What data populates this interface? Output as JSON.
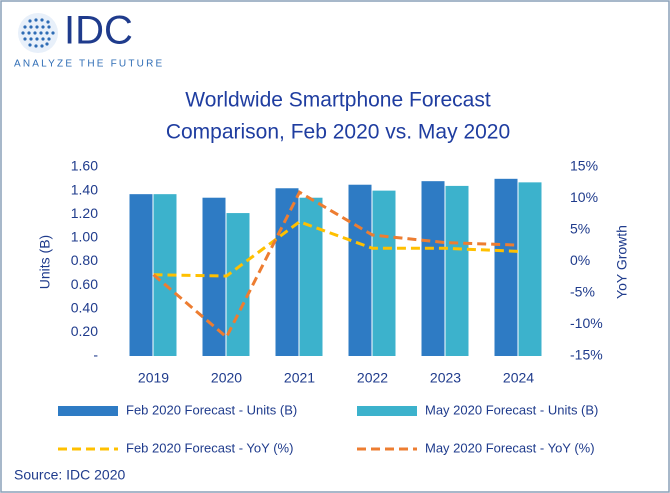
{
  "chart_data": {
    "type": "bar",
    "logo_text": "IDC",
    "tagline": "ANALYZE THE FUTURE",
    "title": [
      "Worldwide Smartphone Forecast",
      "Comparison, Feb 2020 vs. May 2020"
    ],
    "ylabel": "Units (B)",
    "y2label": "YoY Growth",
    "categories": [
      "2019",
      "2020",
      "2021",
      "2022",
      "2023",
      "2024"
    ],
    "series": [
      {
        "name": "Feb 2020 Forecast - Units (B)",
        "type": "bar",
        "color": "#2e7bc4",
        "values": [
          1.37,
          1.34,
          1.42,
          1.45,
          1.48,
          1.5
        ]
      },
      {
        "name": "May 2020 Forecast - Units (B)",
        "type": "bar",
        "color": "#3cb2cc",
        "values": [
          1.37,
          1.21,
          1.34,
          1.4,
          1.44,
          1.47
        ]
      },
      {
        "name": "Feb 2020 Forecast - YoY (%)",
        "type": "line",
        "axis": "y2",
        "color": "#ffc000",
        "values": [
          -2.1,
          -2.3,
          6.3,
          2.1,
          2.1,
          1.6
        ]
      },
      {
        "name": "May 2020 Forecast - YoY (%)",
        "type": "line",
        "axis": "y2",
        "color": "#ed7d31",
        "values": [
          -2.1,
          -12.0,
          11.0,
          4.2,
          3.0,
          2.6
        ]
      }
    ],
    "ylim": [
      0,
      1.6
    ],
    "yticks": [
      {
        "value": 0,
        "label": "-"
      },
      {
        "value": 0.2,
        "label": "0.20"
      },
      {
        "value": 0.4,
        "label": "0.40"
      },
      {
        "value": 0.6,
        "label": "0.60"
      },
      {
        "value": 0.8,
        "label": "0.80"
      },
      {
        "value": 1.0,
        "label": "1.00"
      },
      {
        "value": 1.2,
        "label": "1.20"
      },
      {
        "value": 1.4,
        "label": "1.40"
      },
      {
        "value": 1.6,
        "label": "1.60"
      }
    ],
    "y2lim": [
      -15,
      15
    ],
    "y2ticks": [
      {
        "value": -15,
        "label": "-15%"
      },
      {
        "value": -10,
        "label": "-10%"
      },
      {
        "value": -5,
        "label": "-5%"
      },
      {
        "value": 0,
        "label": "0%"
      },
      {
        "value": 5,
        "label": "5%"
      },
      {
        "value": 10,
        "label": "10%"
      },
      {
        "value": 15,
        "label": "15%"
      }
    ],
    "source": "Source: IDC 2020"
  }
}
